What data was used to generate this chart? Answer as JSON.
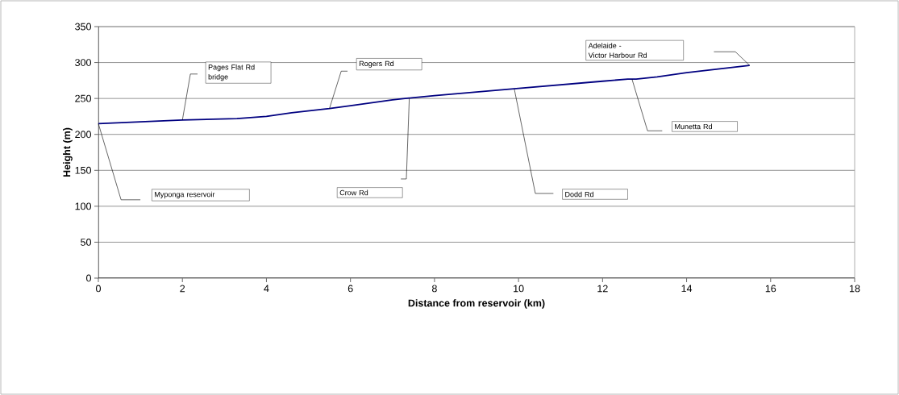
{
  "chart_data": {
    "type": "line",
    "xlabel": "Distance from reservoir (km)",
    "ylabel": "Height (m)",
    "x": [
      0,
      2,
      3.3,
      4,
      4.6,
      5.5,
      6,
      7,
      7.3,
      8,
      10,
      12,
      12.6,
      12.8,
      13.3,
      14,
      15.5
    ],
    "values": [
      215,
      220,
      222,
      225,
      230,
      236,
      240,
      248,
      250,
      254,
      264,
      274,
      277,
      277,
      280,
      286,
      296
    ],
    "color": "#000080",
    "xlim": [
      0,
      18
    ],
    "ylim": [
      0,
      350
    ],
    "xticks": [
      0,
      2,
      4,
      6,
      8,
      10,
      12,
      14,
      16,
      18
    ],
    "yticks": [
      0,
      50,
      100,
      150,
      200,
      250,
      300,
      350
    ],
    "grid": "y",
    "marker": "none",
    "line_style": "solid",
    "annotations": [
      "Myponga reservoir",
      "Pages Flat Rd\nbridge",
      "Rogers Rd",
      "Crow  Rd",
      "Dodd Rd",
      "Munetta Rd",
      "Adelaide -\nVictor Harbour Rd"
    ]
  }
}
